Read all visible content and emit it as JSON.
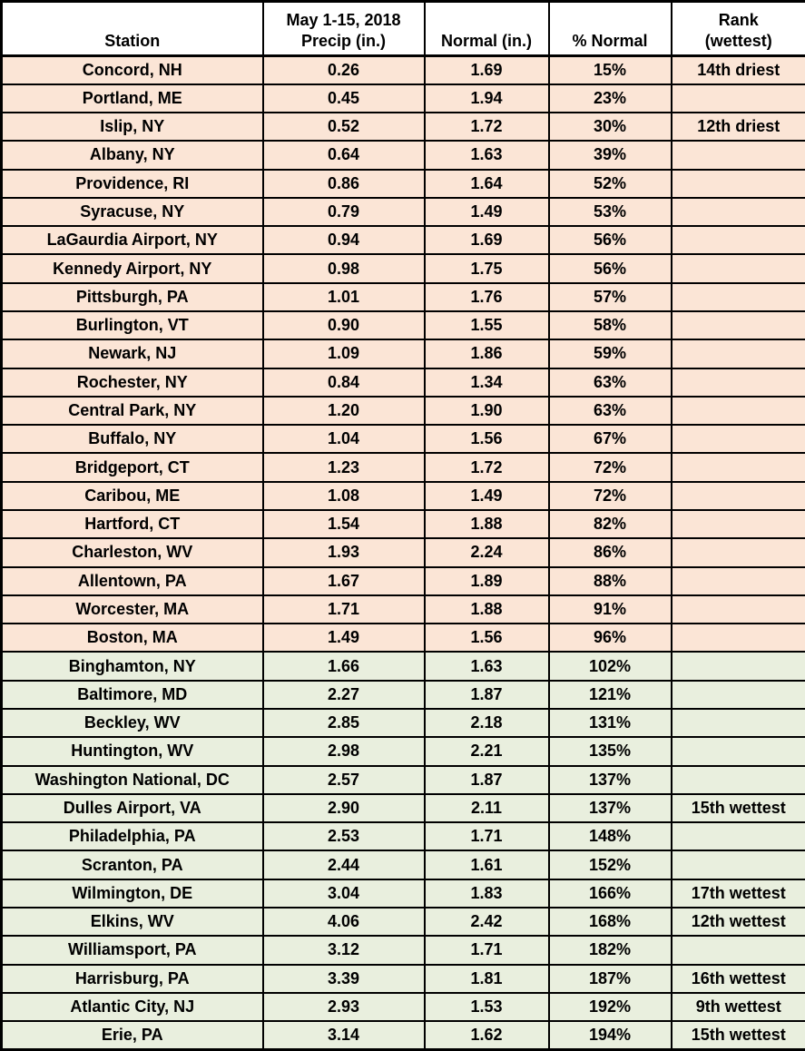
{
  "chart_data": {
    "type": "table",
    "header": {
      "station": "Station",
      "precip_line1": "May 1-15, 2018",
      "precip_line2": "Precip (in.)",
      "normal": "Normal (in.)",
      "pct_normal": "% Normal",
      "rank_line1": "Rank",
      "rank_line2": "(wettest)"
    },
    "rows": [
      {
        "station": "Concord, NH",
        "precip": "0.26",
        "normal": "1.69",
        "pct_normal": "15%",
        "rank": "14th driest",
        "status": "below_normal"
      },
      {
        "station": "Portland, ME",
        "precip": "0.45",
        "normal": "1.94",
        "pct_normal": "23%",
        "rank": "",
        "status": "below_normal"
      },
      {
        "station": "Islip, NY",
        "precip": "0.52",
        "normal": "1.72",
        "pct_normal": "30%",
        "rank": "12th driest",
        "status": "below_normal"
      },
      {
        "station": "Albany, NY",
        "precip": "0.64",
        "normal": "1.63",
        "pct_normal": "39%",
        "rank": "",
        "status": "below_normal"
      },
      {
        "station": "Providence, RI",
        "precip": "0.86",
        "normal": "1.64",
        "pct_normal": "52%",
        "rank": "",
        "status": "below_normal"
      },
      {
        "station": "Syracuse, NY",
        "precip": "0.79",
        "normal": "1.49",
        "pct_normal": "53%",
        "rank": "",
        "status": "below_normal"
      },
      {
        "station": "LaGaurdia Airport, NY",
        "precip": "0.94",
        "normal": "1.69",
        "pct_normal": "56%",
        "rank": "",
        "status": "below_normal"
      },
      {
        "station": "Kennedy Airport, NY",
        "precip": "0.98",
        "normal": "1.75",
        "pct_normal": "56%",
        "rank": "",
        "status": "below_normal"
      },
      {
        "station": "Pittsburgh, PA",
        "precip": "1.01",
        "normal": "1.76",
        "pct_normal": "57%",
        "rank": "",
        "status": "below_normal"
      },
      {
        "station": "Burlington, VT",
        "precip": "0.90",
        "normal": "1.55",
        "pct_normal": "58%",
        "rank": "",
        "status": "below_normal"
      },
      {
        "station": "Newark, NJ",
        "precip": "1.09",
        "normal": "1.86",
        "pct_normal": "59%",
        "rank": "",
        "status": "below_normal"
      },
      {
        "station": "Rochester, NY",
        "precip": "0.84",
        "normal": "1.34",
        "pct_normal": "63%",
        "rank": "",
        "status": "below_normal"
      },
      {
        "station": "Central Park, NY",
        "precip": "1.20",
        "normal": "1.90",
        "pct_normal": "63%",
        "rank": "",
        "status": "below_normal"
      },
      {
        "station": "Buffalo, NY",
        "precip": "1.04",
        "normal": "1.56",
        "pct_normal": "67%",
        "rank": "",
        "status": "below_normal"
      },
      {
        "station": "Bridgeport, CT",
        "precip": "1.23",
        "normal": "1.72",
        "pct_normal": "72%",
        "rank": "",
        "status": "below_normal"
      },
      {
        "station": "Caribou, ME",
        "precip": "1.08",
        "normal": "1.49",
        "pct_normal": "72%",
        "rank": "",
        "status": "below_normal"
      },
      {
        "station": "Hartford, CT",
        "precip": "1.54",
        "normal": "1.88",
        "pct_normal": "82%",
        "rank": "",
        "status": "below_normal"
      },
      {
        "station": "Charleston, WV",
        "precip": "1.93",
        "normal": "2.24",
        "pct_normal": "86%",
        "rank": "",
        "status": "below_normal"
      },
      {
        "station": "Allentown, PA",
        "precip": "1.67",
        "normal": "1.89",
        "pct_normal": "88%",
        "rank": "",
        "status": "below_normal"
      },
      {
        "station": "Worcester, MA",
        "precip": "1.71",
        "normal": "1.88",
        "pct_normal": "91%",
        "rank": "",
        "status": "below_normal"
      },
      {
        "station": "Boston, MA",
        "precip": "1.49",
        "normal": "1.56",
        "pct_normal": "96%",
        "rank": "",
        "status": "below_normal"
      },
      {
        "station": "Binghamton, NY",
        "precip": "1.66",
        "normal": "1.63",
        "pct_normal": "102%",
        "rank": "",
        "status": "above_normal"
      },
      {
        "station": "Baltimore, MD",
        "precip": "2.27",
        "normal": "1.87",
        "pct_normal": "121%",
        "rank": "",
        "status": "above_normal"
      },
      {
        "station": "Beckley, WV",
        "precip": "2.85",
        "normal": "2.18",
        "pct_normal": "131%",
        "rank": "",
        "status": "above_normal"
      },
      {
        "station": "Huntington, WV",
        "precip": "2.98",
        "normal": "2.21",
        "pct_normal": "135%",
        "rank": "",
        "status": "above_normal"
      },
      {
        "station": "Washington National, DC",
        "precip": "2.57",
        "normal": "1.87",
        "pct_normal": "137%",
        "rank": "",
        "status": "above_normal"
      },
      {
        "station": "Dulles Airport, VA",
        "precip": "2.90",
        "normal": "2.11",
        "pct_normal": "137%",
        "rank": "15th wettest",
        "status": "above_normal"
      },
      {
        "station": "Philadelphia, PA",
        "precip": "2.53",
        "normal": "1.71",
        "pct_normal": "148%",
        "rank": "",
        "status": "above_normal"
      },
      {
        "station": "Scranton, PA",
        "precip": "2.44",
        "normal": "1.61",
        "pct_normal": "152%",
        "rank": "",
        "status": "above_normal"
      },
      {
        "station": "Wilmington, DE",
        "precip": "3.04",
        "normal": "1.83",
        "pct_normal": "166%",
        "rank": "17th wettest",
        "status": "above_normal"
      },
      {
        "station": "Elkins, WV",
        "precip": "4.06",
        "normal": "2.42",
        "pct_normal": "168%",
        "rank": "12th wettest",
        "status": "above_normal"
      },
      {
        "station": "Williamsport, PA",
        "precip": "3.12",
        "normal": "1.71",
        "pct_normal": "182%",
        "rank": "",
        "status": "above_normal"
      },
      {
        "station": "Harrisburg, PA",
        "precip": "3.39",
        "normal": "1.81",
        "pct_normal": "187%",
        "rank": "16th wettest",
        "status": "above_normal"
      },
      {
        "station": "Atlantic City, NJ",
        "precip": "2.93",
        "normal": "1.53",
        "pct_normal": "192%",
        "rank": "9th wettest",
        "status": "above_normal"
      },
      {
        "station": "Erie, PA",
        "precip": "3.14",
        "normal": "1.62",
        "pct_normal": "194%",
        "rank": "15th wettest",
        "status": "above_normal"
      }
    ],
    "colors": {
      "below_normal_fill": "#fbe5d6",
      "above_normal_fill": "#e9efde",
      "header_fill": "#ffffff",
      "border": "#000000",
      "text": "#000000"
    },
    "layout": {
      "shading_rule": "rows under 100% of normal shaded tan, 100% and over shaded green",
      "grid": "all black gridlines, thicker outer and header border"
    }
  }
}
